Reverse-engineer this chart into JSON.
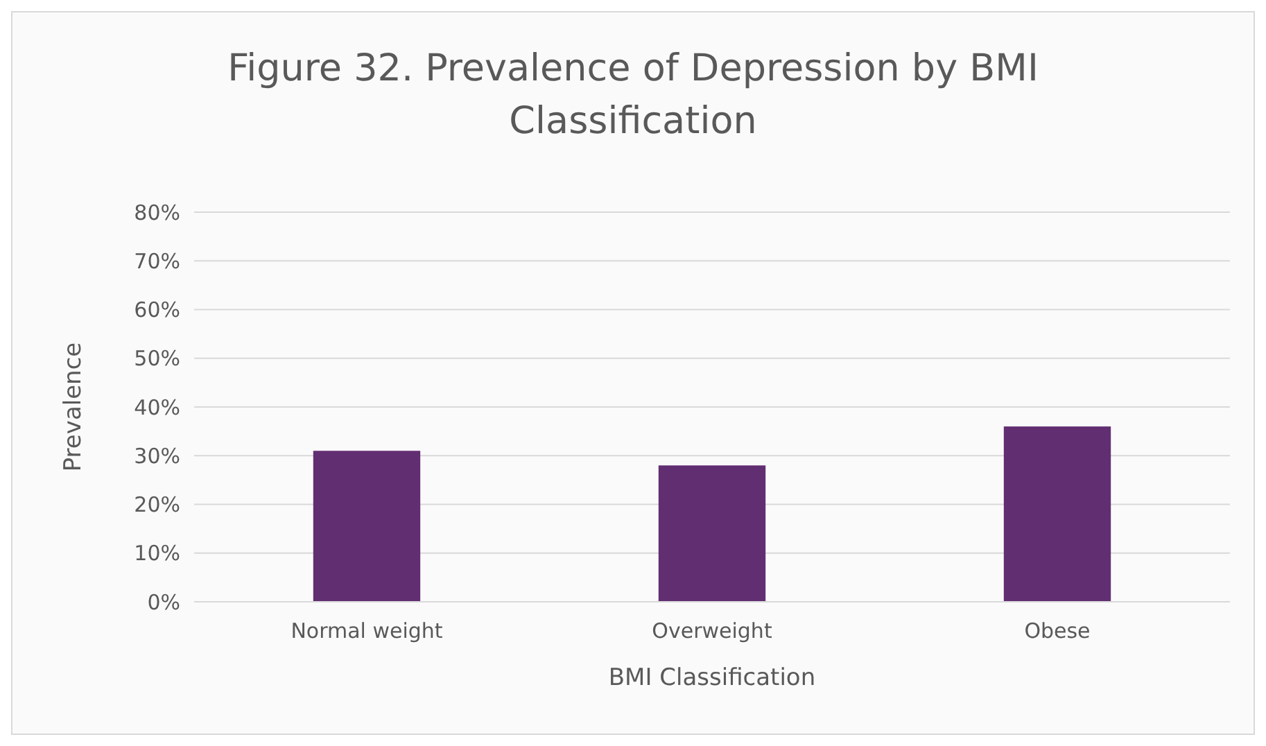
{
  "chart_data": {
    "type": "bar",
    "title": "Figure 32. Prevalence of Depression by BMI Classification",
    "xlabel": "BMI Classification",
    "ylabel": "Prevalence",
    "categories": [
      "Normal weight",
      "Overweight",
      "Obese"
    ],
    "values": [
      31,
      28,
      36
    ],
    "color": "#622e72",
    "ylim": [
      0,
      80
    ],
    "yticks": [
      {
        "value": 0,
        "label": "0%"
      },
      {
        "value": 10,
        "label": "10%"
      },
      {
        "value": 20,
        "label": "20%"
      },
      {
        "value": 30,
        "label": "30%"
      },
      {
        "value": 40,
        "label": "40%"
      },
      {
        "value": 50,
        "label": "50%"
      },
      {
        "value": 60,
        "label": "60%"
      },
      {
        "value": 70,
        "label": "70%"
      },
      {
        "value": 80,
        "label": "80%"
      }
    ],
    "grid": "y"
  }
}
